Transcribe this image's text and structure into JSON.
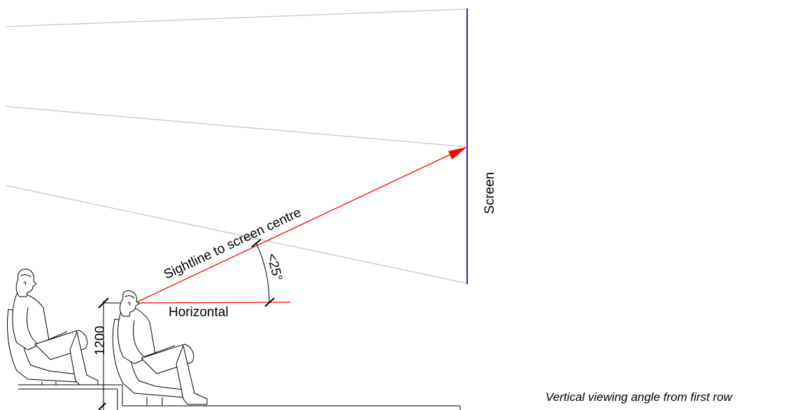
{
  "labels": {
    "screen": "Screen",
    "sightline": "Sightline to screen centre",
    "angle": "<25°",
    "horizontal": "Horizontal",
    "height_dim": "1200",
    "caption": "Vertical viewing angle from first row"
  },
  "colors": {
    "screen": "#2222cc",
    "sightline": "#ff0000",
    "horizontal": "#ff0000",
    "guide_lines": "#c8c8c8",
    "drawing": "#000000"
  },
  "icons": [
    "seated-viewer-front-row-icon",
    "seated-viewer-back-row-icon",
    "arrowhead-icon"
  ]
}
